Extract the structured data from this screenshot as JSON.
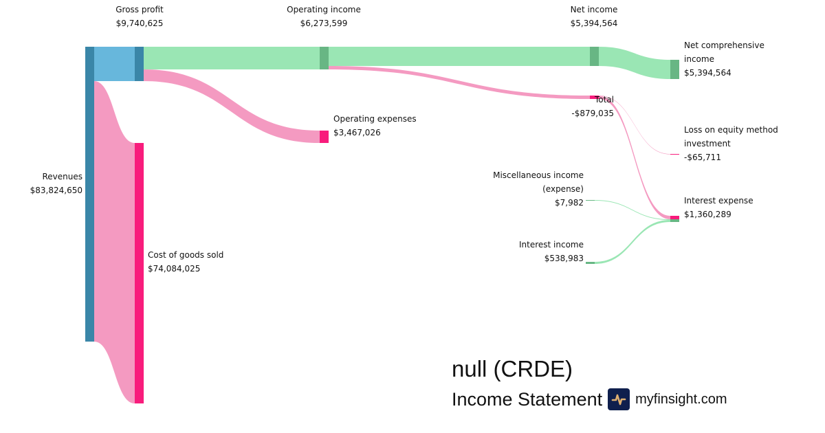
{
  "title": "null (CRDE)",
  "subtitle": "Income Statement",
  "brand": "myfinsight.com",
  "brand_icon": "pulse-chart-icon",
  "colors": {
    "node_blue": "#3a86a8",
    "flow_blue": "#67b7dc",
    "node_pink": "#f81c7c",
    "flow_pink": "#f49ac1",
    "node_green": "#68b684",
    "flow_green": "#9ae6b4"
  },
  "nodes": {
    "revenues": {
      "label": "Revenues",
      "value": "$83,824,650"
    },
    "gross_profit": {
      "label": "Gross profit",
      "value": "$9,740,625"
    },
    "cogs": {
      "label": "Cost of goods sold",
      "value": "$74,084,025"
    },
    "operating_income": {
      "label": "Operating income",
      "value": "$6,273,599"
    },
    "operating_expenses": {
      "label": "Operating expenses",
      "value": "$3,467,026"
    },
    "net_income": {
      "label": "Net income",
      "value": "$5,394,564"
    },
    "total": {
      "label": "Total",
      "value": "-$879,035"
    },
    "net_comprehensive_income": {
      "label": "Net comprehensive income",
      "value": "$5,394,564"
    },
    "loss_equity": {
      "label": "Loss on equity method investment",
      "value": "-$65,711"
    },
    "misc_income": {
      "label": "Miscellaneous income (expense)",
      "value": "$7,982"
    },
    "interest_income": {
      "label": "Interest income",
      "value": "$538,983"
    },
    "interest_expense": {
      "label": "Interest expense",
      "value": "$1,360,289"
    }
  },
  "links": [
    {
      "from": "Revenues",
      "to": "Gross profit",
      "value": 9740625
    },
    {
      "from": "Revenues",
      "to": "Cost of goods sold",
      "value": 74084025
    },
    {
      "from": "Gross profit",
      "to": "Operating income",
      "value": 6273599
    },
    {
      "from": "Gross profit",
      "to": "Operating expenses",
      "value": 3467026
    },
    {
      "from": "Operating income",
      "to": "Net income",
      "value": 5394564
    },
    {
      "from": "Operating income",
      "to": "Total",
      "value": 879035
    },
    {
      "from": "Net income",
      "to": "Net comprehensive income",
      "value": 5394564
    },
    {
      "from": "Total",
      "to": "Loss on equity method investment",
      "value": 65711
    },
    {
      "from": "Total",
      "to": "Interest expense",
      "value": 1360289
    },
    {
      "from": "Miscellaneous income (expense)",
      "to": "Interest expense",
      "value": 7982
    },
    {
      "from": "Interest income",
      "to": "Interest expense",
      "value": 538983
    }
  ]
}
